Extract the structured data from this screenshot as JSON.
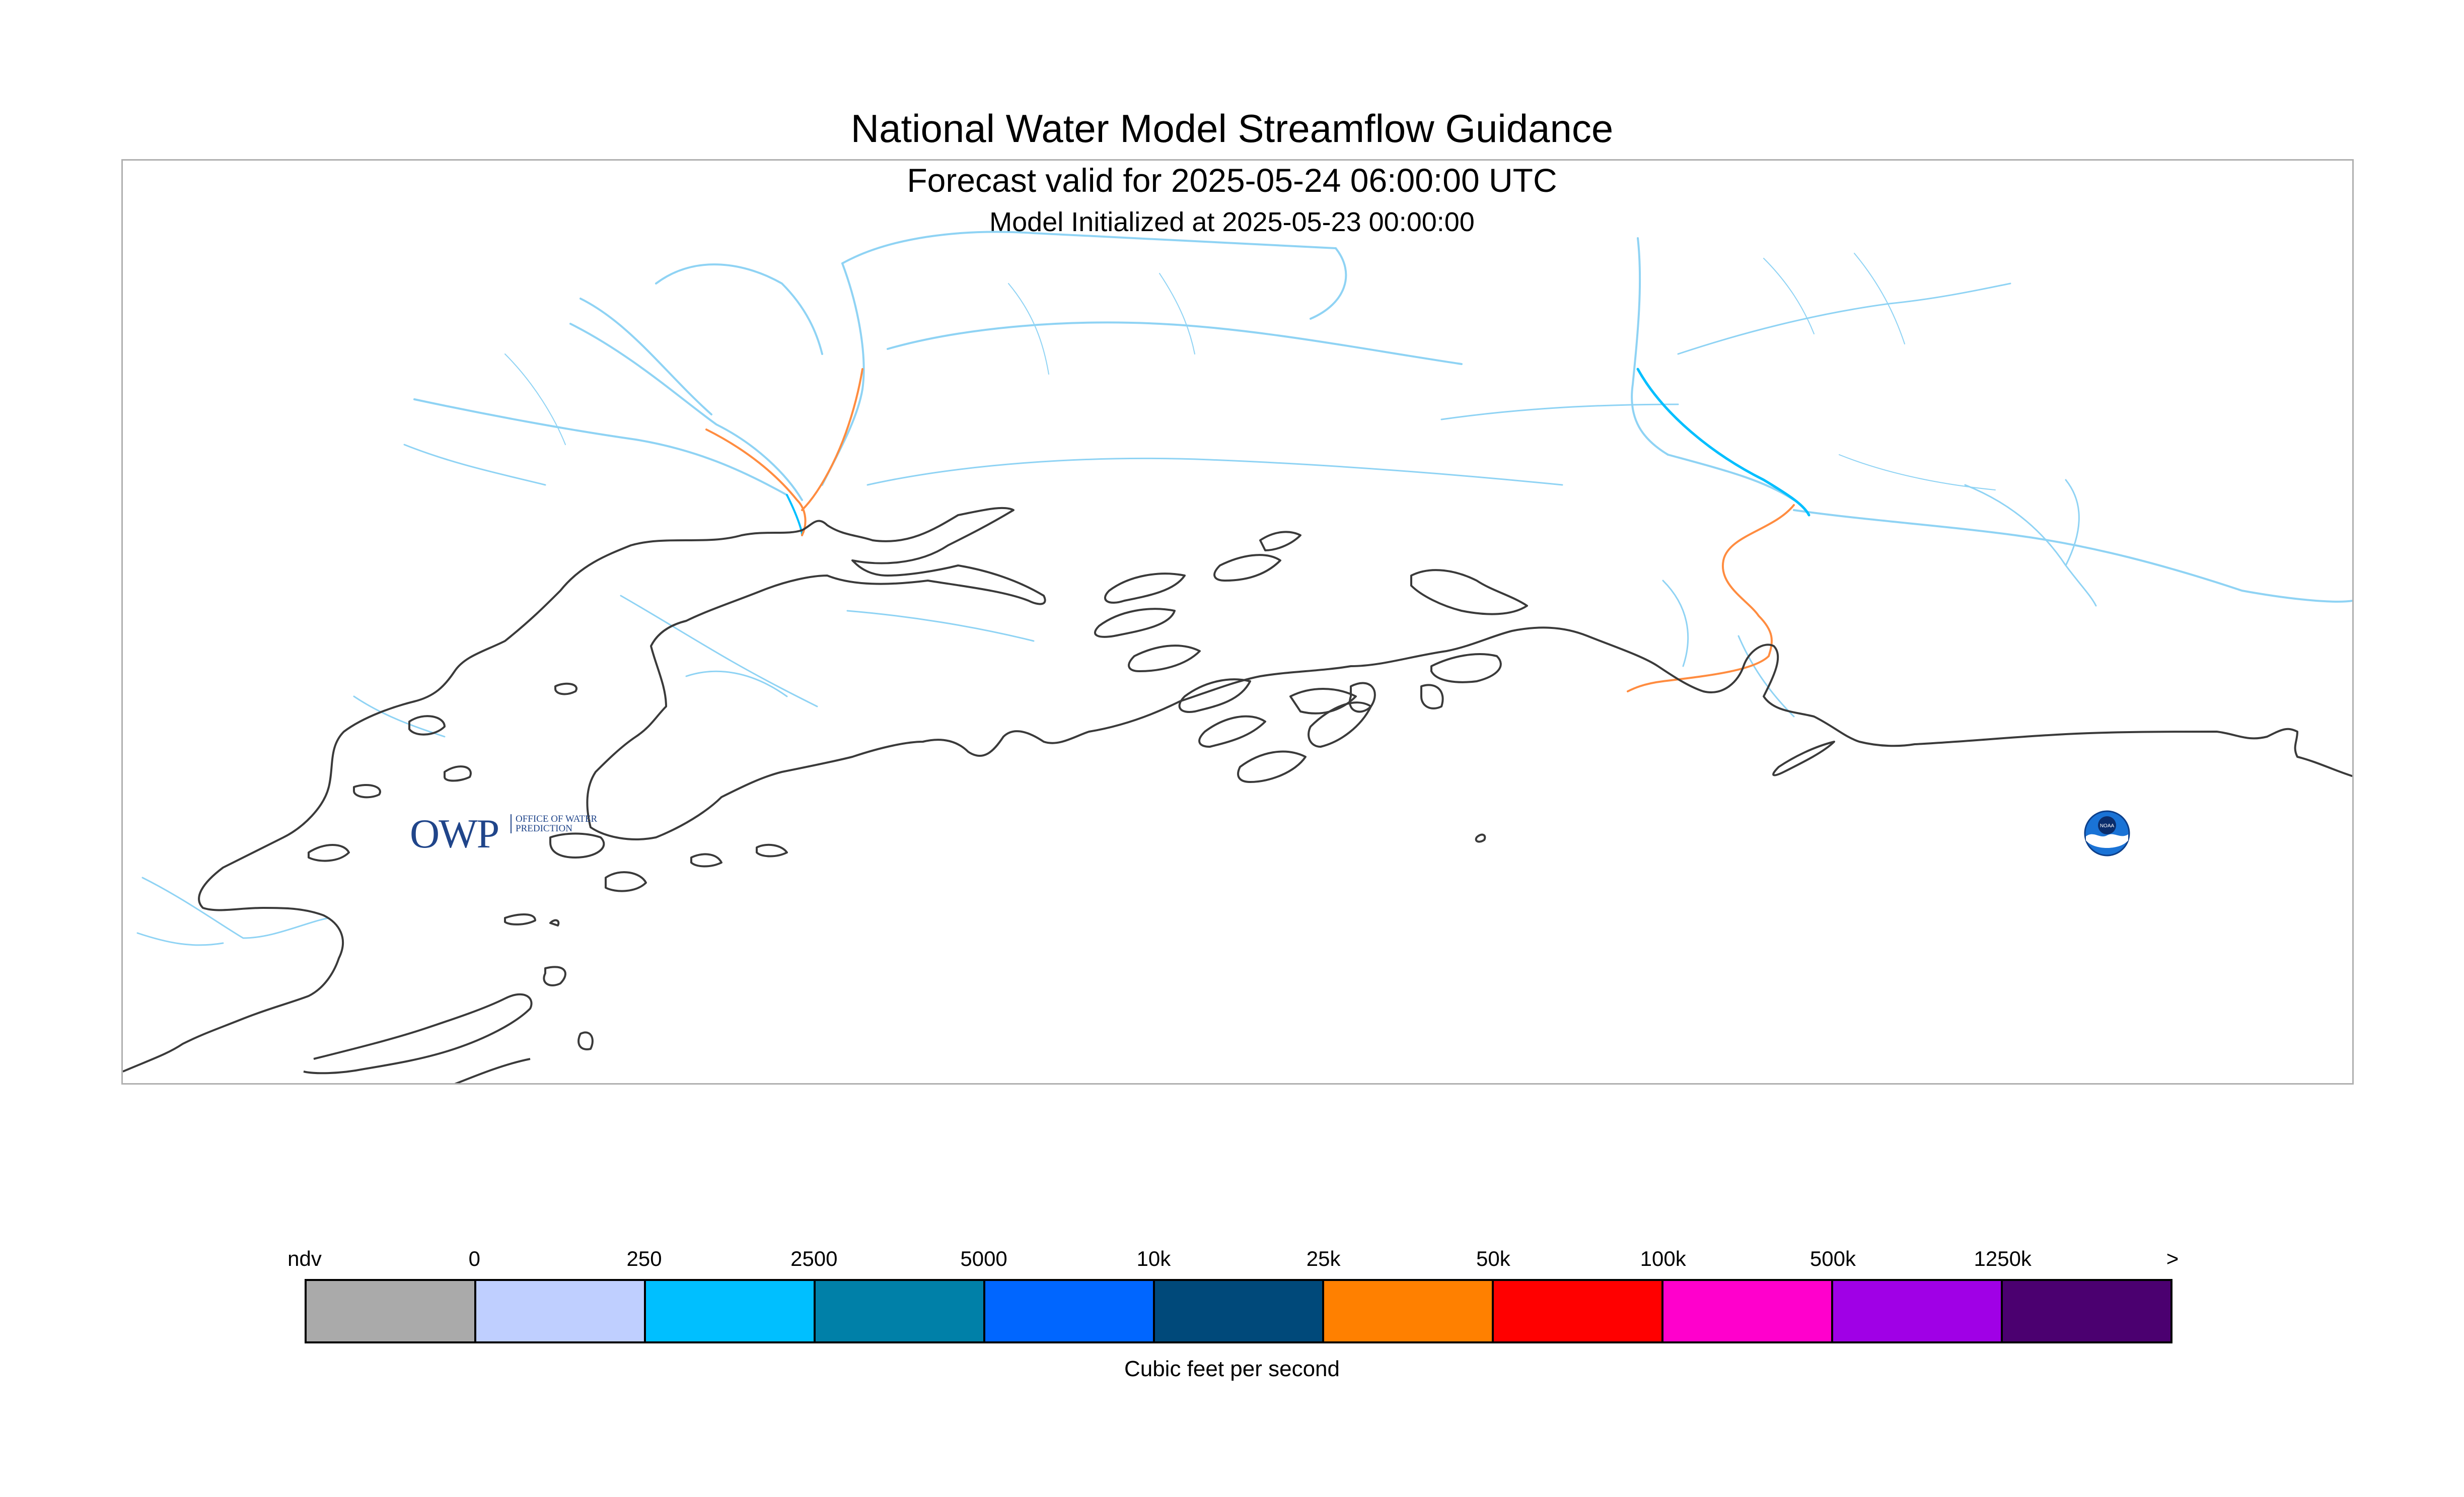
{
  "header": {
    "title": "National Water Model Streamflow Guidance",
    "valid": "Forecast valid for 2025-05-24 06:00:00 UTC",
    "init": "Model Initialized at 2025-05-23 00:00:00"
  },
  "logos": {
    "owp_letters": "OWP",
    "owp_text": "OFFICE OF WATER PREDICTION",
    "noaa_text": "NOAA"
  },
  "legend": {
    "units": "Cubic feet per second",
    "tick_labels": [
      "ndv",
      "0",
      "250",
      "2500",
      "5000",
      "10k",
      "25k",
      "50k",
      "100k",
      "500k",
      "1250k",
      ">"
    ],
    "colors": [
      "#aaaaaa",
      "#bfcfff",
      "#00bfff",
      "#0080a8",
      "#0066ff",
      "#00497a",
      "#ff8000",
      "#ff0000",
      "#ff00cc",
      "#a000e6",
      "#4b0070"
    ]
  },
  "map": {
    "coastline_color": "#3a3a3a",
    "low_flow_color": "#8fd3f4",
    "mid_flow_color": "#00bfff",
    "high_flow_color": "#ff8c40"
  }
}
